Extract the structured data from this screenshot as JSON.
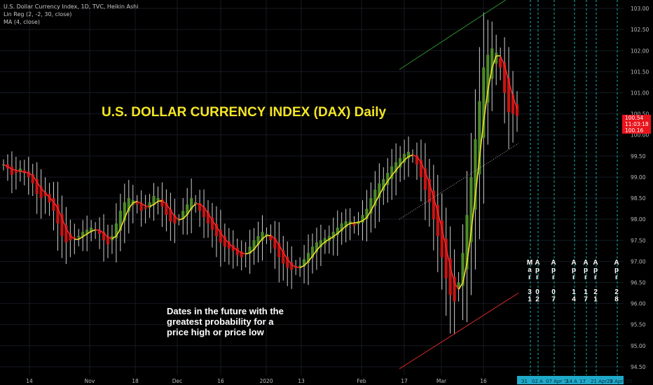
{
  "legend": {
    "line1": "U.S. Dollar Currency Index, 1D, TVC, Heikin Ashi",
    "line2": "Lin Reg (2, -2, 30, close)",
    "line3": "MA (4, close)"
  },
  "title": "U.S. DOLLAR CURRENCY INDEX (DAX) Daily",
  "note": {
    "line1": "Dates in the future with the",
    "line2": "greatest probability for a",
    "line3": "price high or price low"
  },
  "colors": {
    "background": "#000000",
    "grid": "#161a22",
    "up": "#4d8a2a",
    "down": "#c81414",
    "ma": "#f2e02a",
    "ma_down": "#ee2a2a",
    "linreg_upper": "#2e8b2e",
    "linreg_lower": "#d02828",
    "linreg_mid": "#aaaaaa",
    "future_line": "#19b3b3",
    "axis_text": "#bbbbbb",
    "price_tag": "#e8141c",
    "future_axis_bg": "#1fa9c9"
  },
  "chart_data": {
    "type": "candlestick",
    "style": "Heikin Ashi",
    "interval": "1D",
    "y_range": [
      94.3,
      103.2
    ],
    "y_axis_ticks": [
      "103.00",
      "102.50",
      "102.00",
      "101.50",
      "101.00",
      "100.50",
      "100.00",
      "99.50",
      "99.00",
      "98.50",
      "98.00",
      "97.50",
      "97.00",
      "96.50",
      "96.00",
      "95.50",
      "95.00",
      "94.50"
    ],
    "price_labels": [
      "100.54",
      "11:03:18",
      "100.16"
    ],
    "x_axis_labels": [
      "14",
      "Nov",
      "18",
      "Dec",
      "16",
      "2020",
      "13",
      "Feb",
      "17",
      "Mar",
      "16"
    ],
    "candle_count": 124,
    "close_series": [
      99.3,
      99.2,
      99.05,
      99.1,
      99.2,
      99.1,
      99.0,
      98.85,
      98.6,
      98.5,
      98.55,
      98.4,
      98.2,
      97.9,
      97.6,
      97.45,
      97.5,
      97.55,
      97.6,
      97.7,
      97.75,
      97.8,
      97.75,
      97.65,
      97.5,
      97.4,
      97.6,
      97.9,
      98.2,
      98.4,
      98.5,
      98.45,
      98.35,
      98.2,
      98.25,
      98.4,
      98.55,
      98.5,
      98.3,
      98.1,
      97.95,
      97.9,
      98.0,
      98.2,
      98.35,
      98.5,
      98.4,
      98.2,
      98.05,
      97.9,
      97.75,
      97.6,
      97.45,
      97.35,
      97.3,
      97.25,
      97.15,
      97.1,
      97.2,
      97.35,
      97.5,
      97.6,
      97.7,
      97.65,
      97.5,
      97.3,
      97.1,
      96.95,
      96.85,
      96.8,
      96.85,
      96.9,
      97.05,
      97.2,
      97.35,
      97.45,
      97.5,
      97.55,
      97.6,
      97.7,
      97.8,
      97.9,
      97.95,
      97.95,
      97.85,
      97.95,
      98.1,
      98.25,
      98.5,
      98.7,
      98.85,
      98.95,
      99.1,
      99.25,
      99.35,
      99.45,
      99.55,
      99.6,
      99.5,
      99.3,
      99.0,
      98.7,
      98.4,
      98.0,
      97.6,
      97.1,
      96.6,
      96.2,
      96.05,
      96.5,
      97.2,
      98.1,
      99.0,
      99.9,
      100.8,
      101.6,
      101.9,
      102.05,
      101.95,
      101.6,
      101.0,
      100.54,
      100.5,
      100.45
    ],
    "moving_average": {
      "name": "MA (4, close)",
      "period": 4
    },
    "linear_regression_channel": {
      "name": "Lin Reg (2, -2, 30, close)",
      "upper": [
        101.55,
        103.4
      ],
      "middle": [
        98.0,
        99.8
      ],
      "lower": [
        94.45,
        96.25
      ]
    },
    "future_date_lines": [
      {
        "stack": [
          "M",
          "a",
          "r",
          "",
          "3",
          "1"
        ]
      },
      {
        "stack": [
          "A",
          "p",
          "r",
          "",
          "0",
          "2"
        ]
      },
      {
        "stack": [
          "A",
          "p",
          "r",
          "",
          "0",
          "7"
        ]
      },
      {
        "stack": [
          "A",
          "p",
          "r",
          "",
          "1",
          "4"
        ]
      },
      {
        "stack": [
          "A",
          "p",
          "r",
          "",
          "1",
          "7"
        ]
      },
      {
        "stack": [
          "A",
          "p",
          "r",
          "",
          "2",
          "1"
        ]
      },
      {
        "stack": [
          "A",
          "p",
          "r",
          "",
          "2",
          "8"
        ]
      }
    ],
    "future_axis_labels": [
      "31",
      "02 A",
      "07 Apr '2",
      "14 A",
      "17",
      "21 Apr '2",
      "28 Apr '20"
    ]
  }
}
